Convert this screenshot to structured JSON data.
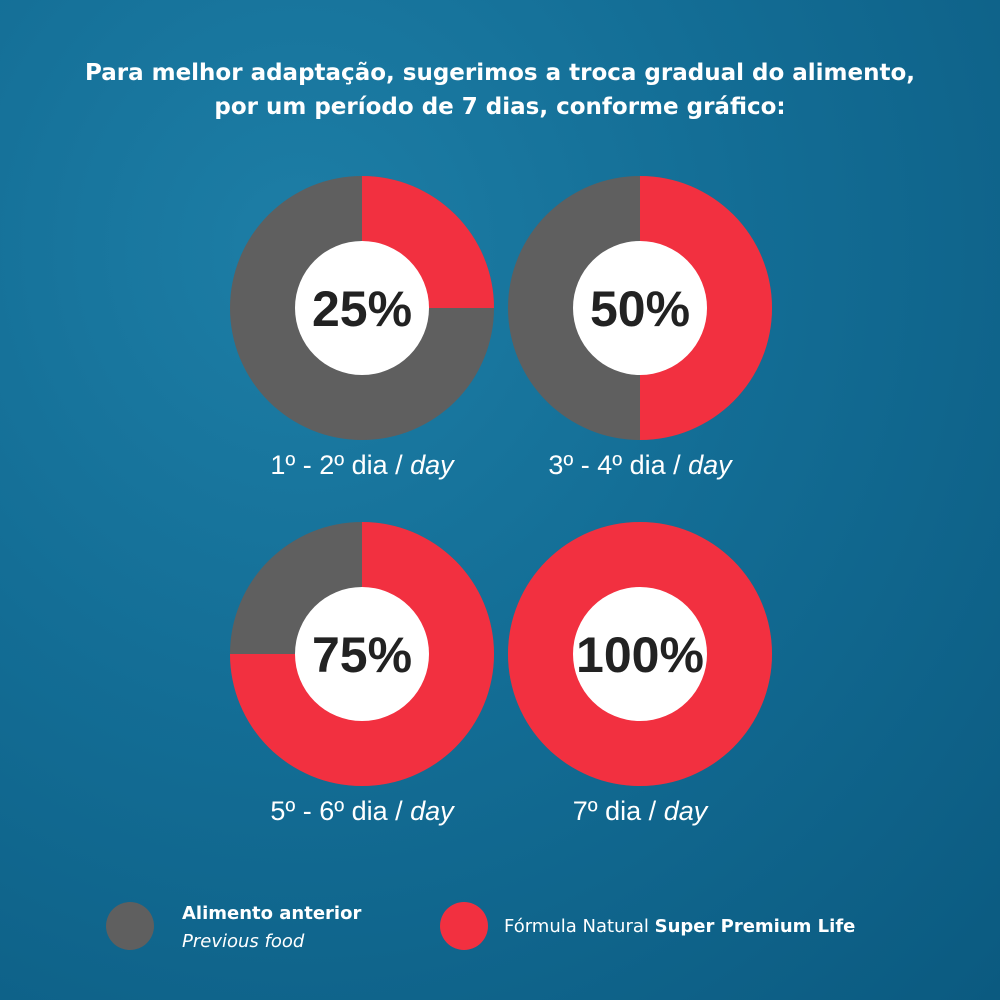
{
  "title": {
    "line1": "Para melhor adaptação, sugerimos a troca gradual do alimento,",
    "line2": "por um período de 7 dias, conforme gráfico:"
  },
  "colors": {
    "previous": "#5f5f5f",
    "new": "#f23040",
    "center": "#ffffff"
  },
  "chart_data": {
    "type": "pie",
    "charts": [
      {
        "new_percent": 25,
        "label": "25%",
        "caption_main": "1º - 2º dia / ",
        "caption_italic": "day"
      },
      {
        "new_percent": 50,
        "label": "50%",
        "caption_main": "3º - 4º dia / ",
        "caption_italic": "day"
      },
      {
        "new_percent": 75,
        "label": "75%",
        "caption_main": "5º - 6º dia / ",
        "caption_italic": "day"
      },
      {
        "new_percent": 100,
        "label": "100%",
        "caption_main": "7º dia / ",
        "caption_italic": "day"
      }
    ],
    "legend": [
      {
        "key": "previous",
        "bold": "Alimento anterior",
        "italic": "Previous food"
      },
      {
        "key": "new",
        "regular": "Fórmula Natural ",
        "bold": "Super Premium Life"
      }
    ]
  }
}
